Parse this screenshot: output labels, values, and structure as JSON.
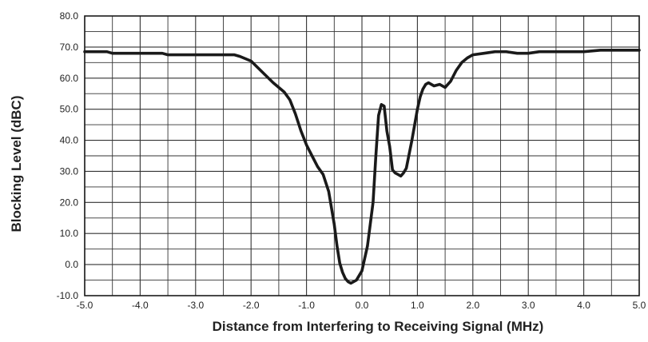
{
  "chart_data": {
    "type": "line",
    "title": "",
    "xlabel": "Distance from  Interfering to Receiving  Signal (MHz)",
    "ylabel": "Blocking Level (dBC)",
    "xlim": [
      -5.0,
      5.0
    ],
    "ylim": [
      -10.0,
      80.0
    ],
    "x_ticks": [
      "-5.0",
      "-4.0",
      "-3.0",
      "-2.0",
      "-1.0",
      "0.0",
      "1.0",
      "2.0",
      "3.0",
      "4.0",
      "5.0"
    ],
    "y_ticks": [
      "80.0",
      "70.0",
      "60.0",
      "50.0",
      "40.0",
      "30.0",
      "20.0",
      "10.0",
      "0.0",
      "-10.0"
    ],
    "grid": "on",
    "legend": "none",
    "line_color": "#1a1a1a",
    "series": [
      {
        "x": [
          -5.0,
          -4.6,
          -4.5,
          -4.0,
          -3.6,
          -3.5,
          -3.0,
          -2.5,
          -2.3,
          -2.2,
          -2.0,
          -1.8,
          -1.6,
          -1.4,
          -1.3,
          -1.2,
          -1.1,
          -1.0,
          -0.9,
          -0.8,
          -0.7,
          -0.6,
          -0.5,
          -0.45,
          -0.4,
          -0.35,
          -0.3,
          -0.25,
          -0.2,
          -0.1,
          0.0,
          0.1,
          0.2,
          0.25,
          0.3,
          0.35,
          0.4,
          0.45,
          0.5,
          0.55,
          0.6,
          0.65,
          0.7,
          0.75,
          0.8,
          0.9,
          1.0,
          1.05,
          1.1,
          1.15,
          1.2,
          1.3,
          1.4,
          1.5,
          1.6,
          1.7,
          1.8,
          1.9,
          2.0,
          2.2,
          2.4,
          2.6,
          2.8,
          3.0,
          3.2,
          3.3,
          3.5,
          4.0,
          4.3,
          5.0
        ],
        "y": [
          68.5,
          68.5,
          68.0,
          68.0,
          68.0,
          67.5,
          67.5,
          67.5,
          67.5,
          67.0,
          65.5,
          62.0,
          58.5,
          55.5,
          53.0,
          48.5,
          43.0,
          38.5,
          35.0,
          31.5,
          29.0,
          23.5,
          13.0,
          6.0,
          0.5,
          -2.5,
          -4.5,
          -5.5,
          -6.0,
          -5.0,
          -2.0,
          6.0,
          20.0,
          35.0,
          48.0,
          51.5,
          51.0,
          43.0,
          38.0,
          30.5,
          29.5,
          29.0,
          28.5,
          29.5,
          31.0,
          40.0,
          50.0,
          54.0,
          56.5,
          58.0,
          58.5,
          57.5,
          58.0,
          57.0,
          59.0,
          62.5,
          65.0,
          66.5,
          67.5,
          68.0,
          68.5,
          68.5,
          68.0,
          68.0,
          68.5,
          68.5,
          68.5,
          68.5,
          69.0,
          69.0
        ]
      }
    ]
  }
}
